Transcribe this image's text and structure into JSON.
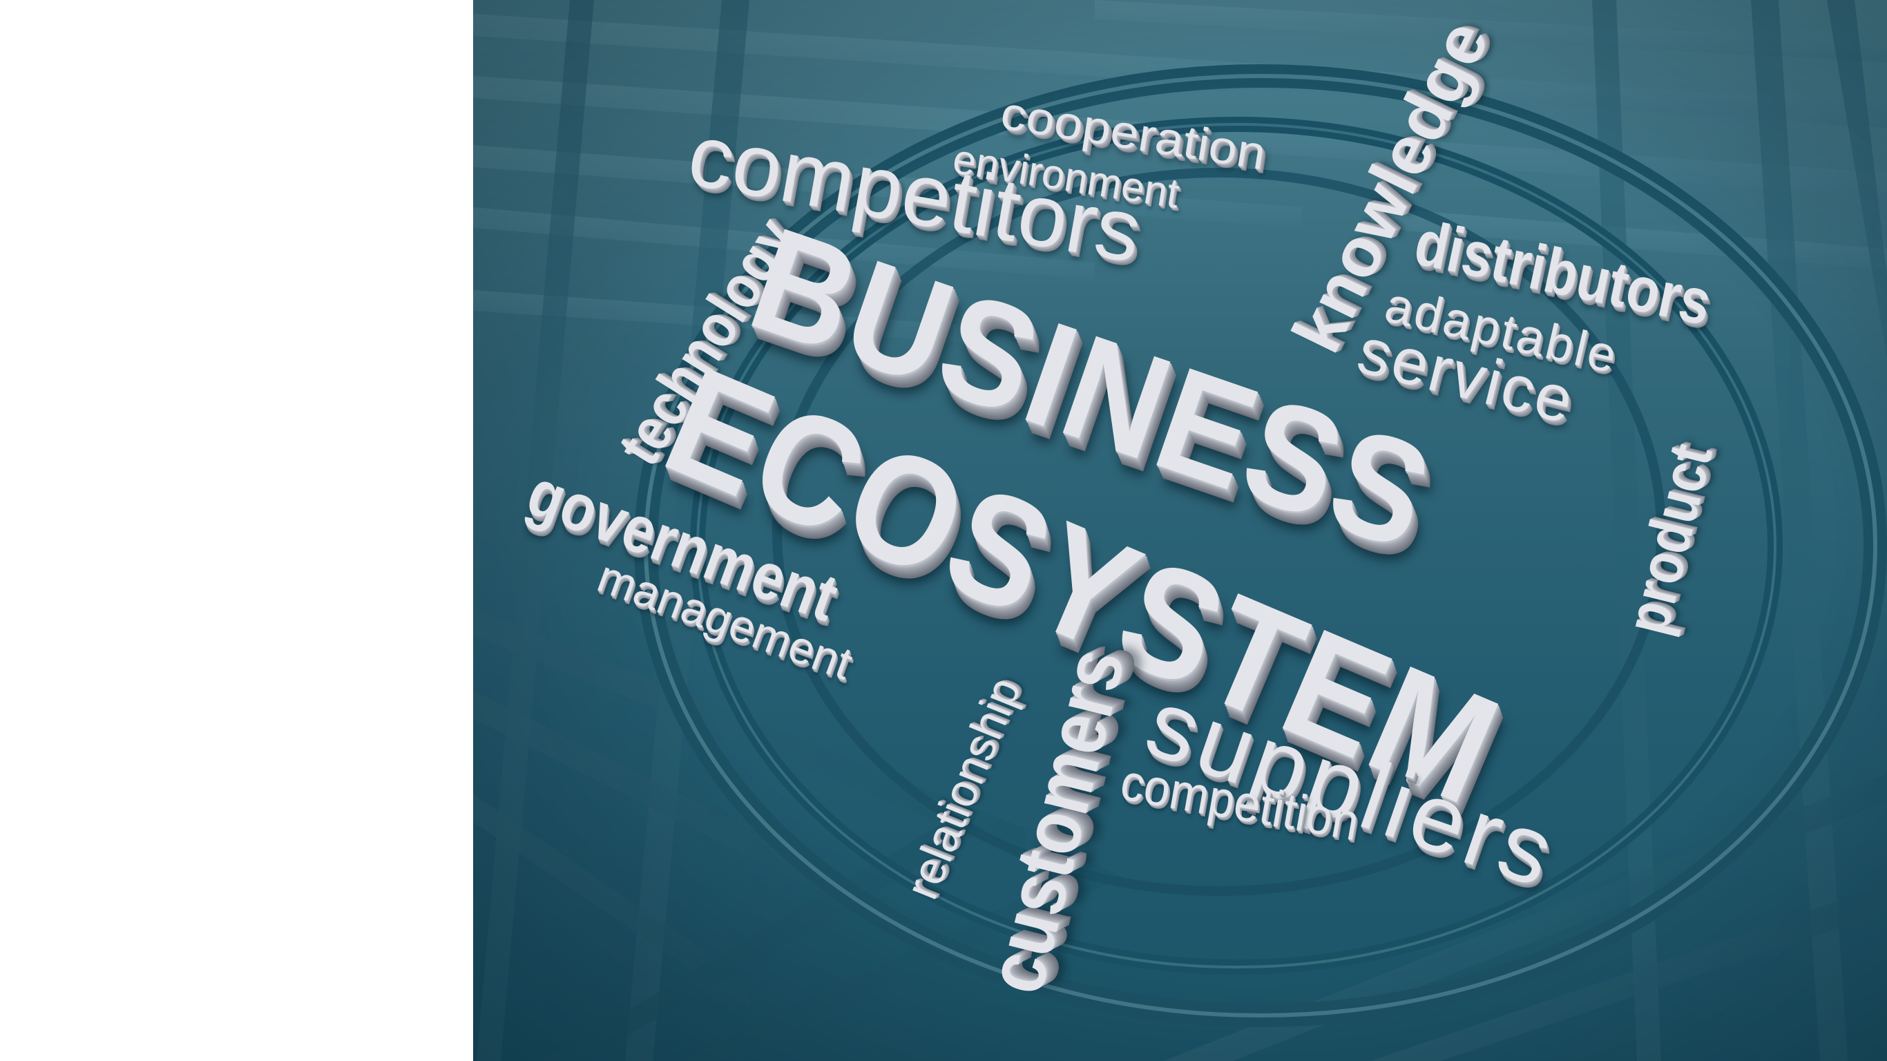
{
  "image": {
    "background_colors": [
      "#4a7f8f",
      "#32687a",
      "#1b5468"
    ],
    "text_color": "#e4e5ea"
  },
  "words": {
    "business": "BUSINESS",
    "ecosystem": "ECOSYSTEM",
    "cooperation": "cooperation",
    "environment": "environment",
    "competitors": "competitors",
    "knowledge": "knowledge",
    "technology": "technology",
    "distributors": "distributors",
    "adaptable": "adaptable",
    "service": "service",
    "product": "product",
    "government": "government",
    "management": "management",
    "relationship": "relationship",
    "customers": "customers",
    "suppliers": "suppliers",
    "competition": "competition"
  }
}
